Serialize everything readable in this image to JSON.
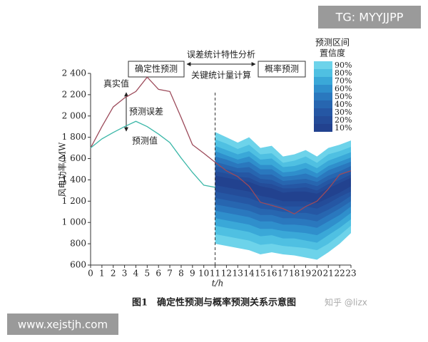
{
  "chart_data": {
    "type": "line",
    "x_label": "t/h",
    "y_label": "风电功率/MW",
    "x": [
      0,
      1,
      2,
      3,
      4,
      5,
      6,
      7,
      8,
      9,
      10,
      11,
      12,
      13,
      14,
      15,
      16,
      17,
      18,
      19,
      20,
      21,
      22,
      23
    ],
    "xlim": [
      0,
      23
    ],
    "xticks": [
      0,
      1,
      2,
      3,
      4,
      5,
      6,
      7,
      8,
      9,
      10,
      11,
      12,
      13,
      14,
      15,
      16,
      17,
      18,
      19,
      20,
      21,
      22,
      23
    ],
    "ylim": [
      600,
      2400
    ],
    "yticks": [
      600,
      800,
      {
        "value": 1000,
        "label": "1 000"
      },
      {
        "value": 1200,
        "label": "1 200"
      },
      {
        "value": 1400,
        "label": "1 400"
      },
      {
        "value": 1600,
        "label": "1 600"
      },
      {
        "value": 1800,
        "label": "1 800"
      },
      {
        "value": 2000,
        "label": "2 000"
      },
      {
        "value": 2200,
        "label": "2 200"
      },
      {
        "value": 2400,
        "label": "2 400"
      }
    ],
    "series": [
      {
        "name": "真实值",
        "color": "#9c4a5a",
        "values": [
          1700,
          1900,
          2085,
          2170,
          2230,
          2365,
          2250,
          2230,
          1985,
          1730,
          1650,
          1565,
          1485,
          1430,
          1340,
          1190,
          1160,
          1130,
          1080,
          1150,
          1200,
          1315,
          1450,
          1485
        ]
      },
      {
        "name": "预测值",
        "color": "#3bb7a8",
        "values": [
          1700,
          1785,
          1845,
          1900,
          1950,
          1900,
          1830,
          1750,
          1605,
          1470,
          1350,
          1330,
          null,
          null,
          null,
          null,
          null,
          null,
          null,
          null,
          null,
          null,
          null,
          null
        ]
      }
    ],
    "band_x": [
      11,
      12,
      13,
      14,
      15,
      16,
      17,
      18,
      19,
      20,
      21,
      22,
      23
    ],
    "legend_title": [
      "预测区间",
      "置信度"
    ],
    "bands": [
      {
        "name": "90%",
        "color": "#6dd3ea",
        "upper": [
          1850,
          1800,
          1750,
          1800,
          1700,
          1720,
          1620,
          1640,
          1680,
          1620,
          1700,
          1730,
          1770
        ],
        "lower": [
          800,
          780,
          760,
          740,
          700,
          720,
          700,
          690,
          670,
          650,
          720,
          800,
          900
        ]
      },
      {
        "name": "80%",
        "color": "#4fc0e2",
        "upper": [
          1780,
          1740,
          1690,
          1730,
          1640,
          1650,
          1560,
          1580,
          1620,
          1560,
          1640,
          1670,
          1710
        ],
        "lower": [
          890,
          870,
          850,
          830,
          790,
          800,
          780,
          770,
          760,
          740,
          800,
          880,
          970
        ]
      },
      {
        "name": "70%",
        "color": "#3aa8d8",
        "upper": [
          1720,
          1680,
          1640,
          1670,
          1590,
          1600,
          1520,
          1530,
          1560,
          1510,
          1580,
          1620,
          1660
        ],
        "lower": [
          970,
          950,
          930,
          910,
          870,
          880,
          850,
          850,
          830,
          810,
          880,
          950,
          1030
        ]
      },
      {
        "name": "60%",
        "color": "#2f8fcc",
        "upper": [
          1670,
          1630,
          1590,
          1620,
          1540,
          1540,
          1470,
          1480,
          1510,
          1460,
          1530,
          1570,
          1610
        ],
        "lower": [
          1040,
          1020,
          1000,
          980,
          940,
          940,
          920,
          910,
          900,
          880,
          940,
          1010,
          1090
        ]
      },
      {
        "name": "50%",
        "color": "#2a78be",
        "upper": [
          1620,
          1590,
          1550,
          1570,
          1500,
          1500,
          1430,
          1440,
          1460,
          1420,
          1490,
          1530,
          1570
        ],
        "lower": [
          1110,
          1090,
          1070,
          1050,
          1010,
          1010,
          980,
          980,
          970,
          950,
          1010,
          1070,
          1150
        ]
      },
      {
        "name": "40%",
        "color": "#2766b0",
        "upper": [
          1570,
          1540,
          1510,
          1520,
          1450,
          1450,
          1390,
          1400,
          1410,
          1380,
          1440,
          1480,
          1530
        ],
        "lower": [
          1170,
          1150,
          1130,
          1110,
          1070,
          1070,
          1040,
          1040,
          1030,
          1010,
          1070,
          1130,
          1200
        ]
      },
      {
        "name": "30%",
        "color": "#2557a4",
        "upper": [
          1530,
          1500,
          1470,
          1470,
          1410,
          1400,
          1350,
          1360,
          1370,
          1340,
          1400,
          1440,
          1490
        ],
        "lower": [
          1230,
          1210,
          1190,
          1170,
          1130,
          1120,
          1100,
          1090,
          1090,
          1070,
          1120,
          1180,
          1250
        ]
      },
      {
        "name": "20%",
        "color": "#244c99",
        "upper": [
          1480,
          1460,
          1430,
          1420,
          1370,
          1360,
          1320,
          1320,
          1330,
          1300,
          1360,
          1400,
          1450
        ],
        "lower": [
          1290,
          1270,
          1250,
          1230,
          1190,
          1180,
          1150,
          1150,
          1150,
          1130,
          1180,
          1240,
          1290
        ]
      },
      {
        "name": "10%",
        "color": "#22428f",
        "upper": [
          1440,
          1420,
          1400,
          1380,
          1340,
          1320,
          1280,
          1290,
          1290,
          1270,
          1320,
          1370,
          1420
        ],
        "lower": [
          1350,
          1330,
          1310,
          1290,
          1250,
          1230,
          1200,
          1200,
          1200,
          1180,
          1230,
          1280,
          1340
        ]
      }
    ],
    "annotations": {
      "error_analysis": "误差统计特性分析",
      "deterministic": "确定性预测",
      "probabilistic": "概率预测",
      "key_stats": "关键统计量计算",
      "forecast_error": "预测误差"
    },
    "caption": "图1　确定性预测与概率预测关系示意图"
  },
  "watermarks": {
    "top": "TG: MYYJJPP",
    "bottom": "www.xejstjh.com",
    "zhihu": "知乎 @lizx"
  }
}
